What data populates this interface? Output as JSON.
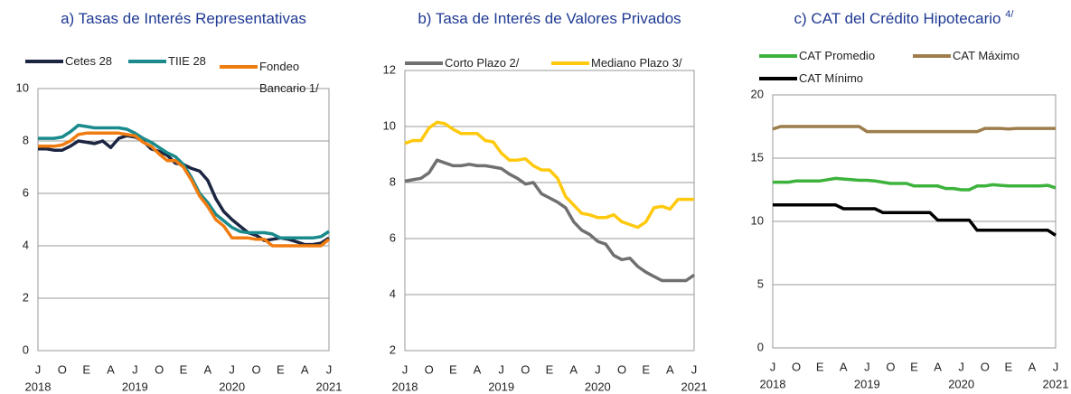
{
  "chart_data": [
    {
      "type": "line",
      "title": "a) Tasas de Interés Representativas",
      "categories": [
        "J",
        null,
        null,
        "O",
        null,
        null,
        "E",
        null,
        null,
        "A",
        null,
        null,
        "J",
        null,
        null,
        "O",
        null,
        null,
        "E",
        null,
        null,
        "A",
        null,
        null,
        "J",
        null,
        null,
        "O",
        null,
        null,
        "E",
        null,
        null,
        "A",
        null,
        null,
        "J"
      ],
      "years": [
        "2018",
        "2019",
        "2020",
        "2021"
      ],
      "ylim": [
        0,
        10
      ],
      "yticks": [
        0,
        2,
        4,
        6,
        8,
        10
      ],
      "grid": true,
      "series": [
        {
          "name": "Cetes 28",
          "color": "#1c2541",
          "values": [
            7.7,
            7.7,
            7.65,
            7.65,
            7.8,
            8.0,
            7.95,
            7.9,
            8.0,
            7.75,
            8.1,
            8.2,
            8.15,
            8.0,
            7.7,
            7.6,
            7.45,
            7.15,
            7.1,
            6.95,
            6.85,
            6.5,
            5.8,
            5.3,
            5.0,
            4.75,
            4.5,
            4.4,
            4.2,
            4.25,
            4.3,
            4.25,
            4.15,
            4.05,
            4.05,
            4.1,
            4.3
          ]
        },
        {
          "name": "TIIE 28",
          "color": "#1a8a8c",
          "values": [
            8.1,
            8.1,
            8.1,
            8.15,
            8.35,
            8.6,
            8.55,
            8.5,
            8.5,
            8.5,
            8.5,
            8.45,
            8.3,
            8.1,
            7.95,
            7.75,
            7.55,
            7.4,
            7.1,
            6.6,
            6.0,
            5.65,
            5.2,
            4.95,
            4.7,
            4.55,
            4.5,
            4.5,
            4.5,
            4.45,
            4.3,
            4.3,
            4.3,
            4.3,
            4.3,
            4.35,
            4.55
          ]
        },
        {
          "name": "Fondeo Bancario 1/",
          "color": "#f07c10",
          "values": [
            7.8,
            7.8,
            7.8,
            7.85,
            8.0,
            8.25,
            8.3,
            8.3,
            8.3,
            8.3,
            8.3,
            8.25,
            8.2,
            7.95,
            7.8,
            7.5,
            7.25,
            7.25,
            7.0,
            6.5,
            5.9,
            5.5,
            5.0,
            4.75,
            4.3,
            4.3,
            4.3,
            4.25,
            4.25,
            4.0,
            4.0,
            4.0,
            4.0,
            4.0,
            4.0,
            4.0,
            4.25
          ]
        }
      ]
    },
    {
      "type": "line",
      "title": "b) Tasa de Interés de Valores Privados",
      "categories": [
        "J",
        null,
        null,
        "O",
        null,
        null,
        "E",
        null,
        null,
        "A",
        null,
        null,
        "J",
        null,
        null,
        "O",
        null,
        null,
        "E",
        null,
        null,
        "A",
        null,
        null,
        "J",
        null,
        null,
        "O",
        null,
        null,
        "E",
        null,
        null,
        "A",
        null,
        null,
        "J"
      ],
      "years": [
        "2018",
        "2019",
        "2020",
        "2021"
      ],
      "ylim": [
        2,
        12
      ],
      "yticks": [
        2,
        4,
        6,
        8,
        10,
        12
      ],
      "grid": true,
      "series": [
        {
          "name": "Corto Plazo 2/",
          "color": "#707070",
          "values": [
            8.05,
            8.1,
            8.15,
            8.35,
            8.8,
            8.7,
            8.6,
            8.6,
            8.65,
            8.6,
            8.6,
            8.55,
            8.5,
            8.3,
            8.15,
            7.95,
            8.0,
            7.6,
            7.45,
            7.3,
            7.1,
            6.6,
            6.3,
            6.15,
            5.9,
            5.8,
            5.4,
            5.25,
            5.3,
            5.0,
            4.8,
            4.65,
            4.5,
            4.5,
            4.5,
            4.5,
            4.7
          ]
        },
        {
          "name": "Mediano Plazo 3/",
          "color": "#ffc90e",
          "values": [
            9.4,
            9.5,
            9.5,
            9.95,
            10.15,
            10.1,
            9.9,
            9.75,
            9.75,
            9.75,
            9.5,
            9.45,
            9.05,
            8.8,
            8.8,
            8.85,
            8.6,
            8.45,
            8.45,
            8.15,
            7.5,
            7.2,
            6.9,
            6.85,
            6.75,
            6.75,
            6.85,
            6.6,
            6.5,
            6.4,
            6.6,
            7.1,
            7.15,
            7.05,
            7.4,
            7.4,
            7.4
          ]
        }
      ]
    },
    {
      "type": "line",
      "title": "c) CAT del Crédito Hipotecario",
      "title_sup": "4/",
      "categories": [
        "J",
        null,
        null,
        "O",
        null,
        null,
        "E",
        null,
        null,
        "A",
        null,
        null,
        "J",
        null,
        null,
        "O",
        null,
        null,
        "E",
        null,
        null,
        "A",
        null,
        null,
        "J",
        null,
        null,
        "O",
        null,
        null,
        "E",
        null,
        null,
        "A",
        null,
        null,
        "J"
      ],
      "years": [
        "2018",
        "2019",
        "2020",
        "2021"
      ],
      "ylim": [
        0,
        20
      ],
      "yticks": [
        0,
        5,
        10,
        15,
        20
      ],
      "grid": true,
      "series": [
        {
          "name": "CAT Promedio",
          "color": "#3db33d",
          "values": [
            13.1,
            13.1,
            13.1,
            13.2,
            13.2,
            13.2,
            13.2,
            13.3,
            13.4,
            13.35,
            13.3,
            13.25,
            13.25,
            13.2,
            13.1,
            13.0,
            13.0,
            13.0,
            12.8,
            12.8,
            12.8,
            12.8,
            12.6,
            12.6,
            12.5,
            12.5,
            12.8,
            12.8,
            12.9,
            12.85,
            12.8,
            12.8,
            12.8,
            12.8,
            12.8,
            12.85,
            12.65
          ]
        },
        {
          "name": "CAT Máximo",
          "color": "#9c7d4b",
          "values": [
            17.3,
            17.5,
            17.5,
            17.5,
            17.5,
            17.5,
            17.5,
            17.5,
            17.5,
            17.5,
            17.5,
            17.5,
            17.1,
            17.1,
            17.1,
            17.1,
            17.1,
            17.1,
            17.1,
            17.1,
            17.1,
            17.1,
            17.1,
            17.1,
            17.1,
            17.1,
            17.1,
            17.35,
            17.35,
            17.35,
            17.3,
            17.35,
            17.35,
            17.35,
            17.35,
            17.35,
            17.35
          ]
        },
        {
          "name": "CAT Mínimo",
          "color": "#000000",
          "values": [
            11.3,
            11.3,
            11.3,
            11.3,
            11.3,
            11.3,
            11.3,
            11.3,
            11.3,
            11.0,
            11.0,
            11.0,
            11.0,
            11.0,
            10.7,
            10.7,
            10.7,
            10.7,
            10.7,
            10.7,
            10.7,
            10.1,
            10.1,
            10.1,
            10.1,
            10.1,
            9.3,
            9.3,
            9.3,
            9.3,
            9.3,
            9.3,
            9.3,
            9.3,
            9.3,
            9.3,
            8.9
          ]
        }
      ]
    }
  ]
}
